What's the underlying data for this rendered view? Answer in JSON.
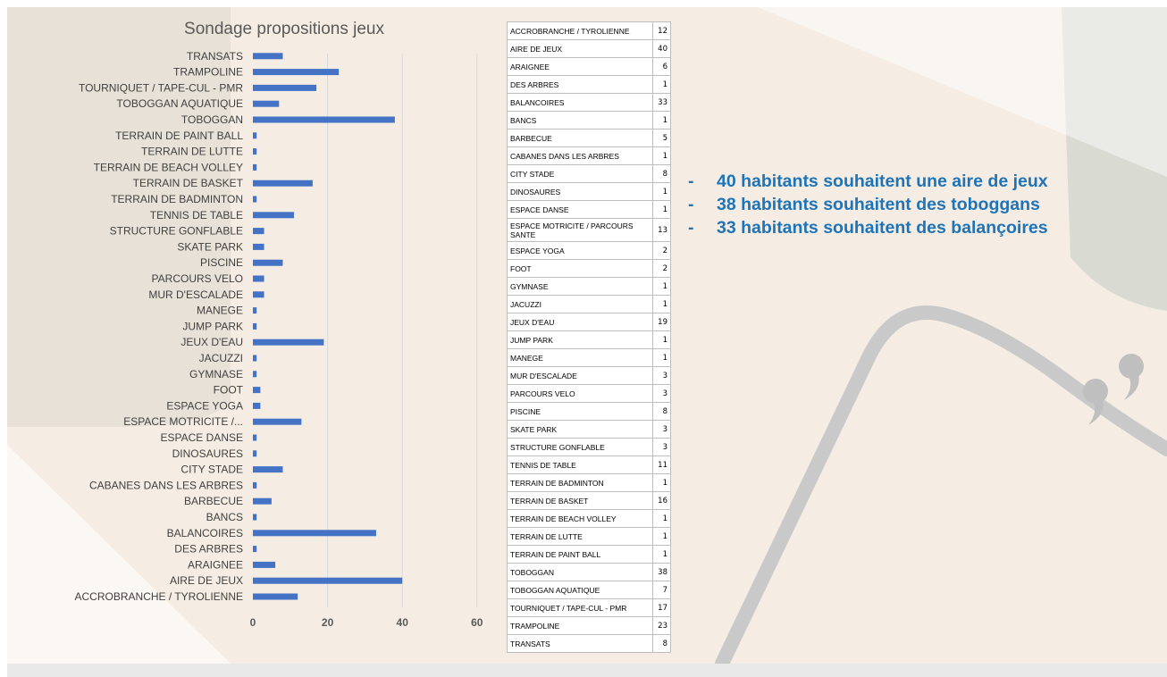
{
  "chart_data": {
    "type": "bar",
    "orientation": "horizontal",
    "title": "Sondage propositions jeux",
    "categories": [
      "ACCROBRANCHE / TYROLIENNE",
      "AIRE DE JEUX",
      "ARAIGNEE",
      "DES ARBRES",
      "BALANCOIRES",
      "BANCS",
      "BARBECUE",
      "CABANES DANS LES ARBRES",
      "CITY STADE",
      "DINOSAURES",
      "ESPACE DANSE",
      "ESPACE MOTRICITE /...",
      "ESPACE YOGA",
      "FOOT",
      "GYMNASE",
      "JACUZZI",
      "JEUX D'EAU",
      "JUMP PARK",
      "MANEGE",
      "MUR D'ESCALADE",
      "PARCOURS VELO",
      "PISCINE",
      "SKATE PARK",
      "STRUCTURE GONFLABLE",
      "TENNIS DE TABLE",
      "TERRAIN DE BADMINTON",
      "TERRAIN DE BASKET",
      "TERRAIN DE BEACH VOLLEY",
      "TERRAIN DE LUTTE",
      "TERRAIN DE PAINT BALL",
      "TOBOGGAN",
      "TOBOGGAN AQUATIQUE",
      "TOURNIQUET / TAPE-CUL - PMR",
      "TRAMPOLINE",
      "TRANSATS"
    ],
    "values": [
      12,
      40,
      6,
      1,
      33,
      1,
      5,
      1,
      8,
      1,
      1,
      13,
      2,
      2,
      1,
      1,
      19,
      1,
      1,
      3,
      3,
      8,
      3,
      3,
      11,
      1,
      16,
      1,
      1,
      1,
      38,
      7,
      17,
      23,
      8
    ],
    "xlim": [
      0,
      60
    ],
    "xticks": [
      "0",
      "20",
      "40",
      "60"
    ],
    "grid": "vertical",
    "legend": "none",
    "bar_color": "#4472c4"
  },
  "table": {
    "rows": [
      {
        "name": "ACCROBRANCHE / TYROLIENNE",
        "count": "12"
      },
      {
        "name": "AIRE DE JEUX",
        "count": "40"
      },
      {
        "name": "ARAIGNEE",
        "count": "6"
      },
      {
        "name": "DES ARBRES",
        "count": "1"
      },
      {
        "name": "BALANCOIRES",
        "count": "33"
      },
      {
        "name": "BANCS",
        "count": "1"
      },
      {
        "name": "BARBECUE",
        "count": "5"
      },
      {
        "name": "CABANES DANS LES ARBRES",
        "count": "1"
      },
      {
        "name": "CITY STADE",
        "count": "8"
      },
      {
        "name": "DINOSAURES",
        "count": "1"
      },
      {
        "name": "ESPACE DANSE",
        "count": "1"
      },
      {
        "name": "ESPACE MOTRICITE / PARCOURS SANTE",
        "count": "13"
      },
      {
        "name": "ESPACE YOGA",
        "count": "2"
      },
      {
        "name": "FOOT",
        "count": "2"
      },
      {
        "name": "GYMNASE",
        "count": "1"
      },
      {
        "name": "JACUZZI",
        "count": "1"
      },
      {
        "name": "JEUX D'EAU",
        "count": "19"
      },
      {
        "name": "JUMP PARK",
        "count": "1"
      },
      {
        "name": "MANEGE",
        "count": "1"
      },
      {
        "name": "MUR D'ESCALADE",
        "count": "3"
      },
      {
        "name": "PARCOURS VELO",
        "count": "3"
      },
      {
        "name": "PISCINE",
        "count": "8"
      },
      {
        "name": "SKATE PARK",
        "count": "3"
      },
      {
        "name": "STRUCTURE GONFLABLE",
        "count": "3"
      },
      {
        "name": "TENNIS DE TABLE",
        "count": "11"
      },
      {
        "name": "TERRAIN DE BADMINTON",
        "count": "1"
      },
      {
        "name": "TERRAIN DE BASKET",
        "count": "16"
      },
      {
        "name": "TERRAIN DE BEACH VOLLEY",
        "count": "1"
      },
      {
        "name": "TERRAIN DE LUTTE",
        "count": "1"
      },
      {
        "name": "TERRAIN DE PAINT BALL",
        "count": "1"
      },
      {
        "name": "TOBOGGAN",
        "count": "38"
      },
      {
        "name": "TOBOGGAN AQUATIQUE",
        "count": "7"
      },
      {
        "name": "TOURNIQUET / TAPE-CUL - PMR",
        "count": "17"
      },
      {
        "name": "TRAMPOLINE",
        "count": "23"
      },
      {
        "name": "TRANSATS",
        "count": "8"
      }
    ]
  },
  "highlights": {
    "bullet": "-",
    "items": [
      "40 habitants souhaitent une aire de jeux",
      "38 habitants souhaitent des toboggans",
      "33 habitants souhaitent des balançoires"
    ]
  },
  "colors": {
    "background": "#f5ede3",
    "accent_text": "#1f73b7",
    "decor_shape": "#ddd7cd",
    "decor_line": "#c9c9c9",
    "decor_green": "#c7cec6"
  },
  "decor": {
    "quote_icon": "closing-quote-icon"
  }
}
